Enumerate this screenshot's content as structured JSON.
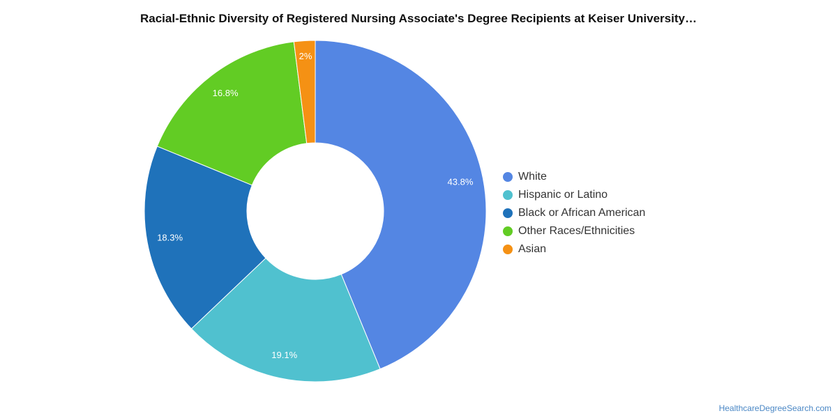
{
  "chart_data": {
    "type": "pie",
    "variant": "donut",
    "title": "Racial-Ethnic Diversity of Registered Nursing Associate's Degree Recipients at Keiser University…",
    "slices": [
      {
        "name": "White",
        "value": 43.8,
        "label": "43.8%",
        "color": "#5486e3"
      },
      {
        "name": "Hispanic or Latino",
        "value": 19.1,
        "label": "19.1%",
        "color": "#50c1cf"
      },
      {
        "name": "Black or African American",
        "value": 18.3,
        "label": "18.3%",
        "color": "#1f72ba"
      },
      {
        "name": "Other Races/Ethnicities",
        "value": 16.8,
        "label": "16.8%",
        "color": "#62cc24"
      },
      {
        "name": "Asian",
        "value": 2,
        "label": "2%",
        "color": "#f59114"
      }
    ],
    "legend_position": "right"
  },
  "footer": {
    "watermark": "HealthcareDegreeSearch.com"
  }
}
